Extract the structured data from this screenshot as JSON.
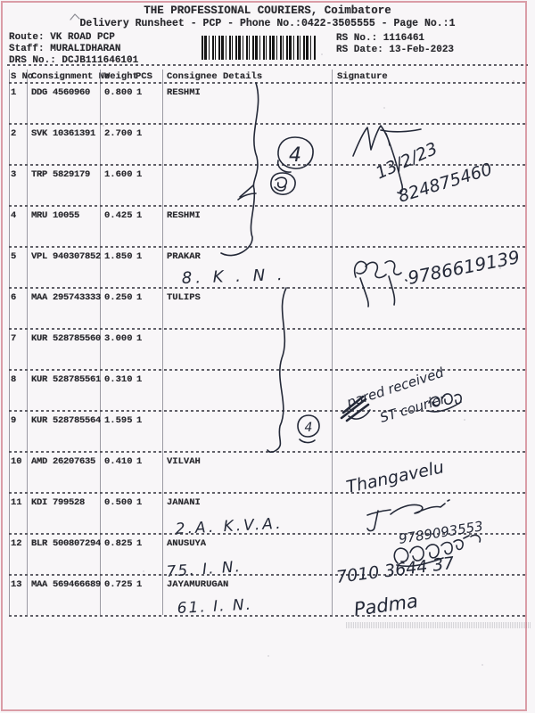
{
  "header": {
    "title": "THE PROFESSIONAL COURIERS, Coimbatore",
    "subtitle": "Delivery Runsheet - PCP - Phone No.:0422-3505555 - Page No.:1",
    "route_label": "Route: VK ROAD PCP",
    "staff_label": "Staff: MURALIDHARAN",
    "drs_label": "DRS No.: DCJB111646101",
    "rs_no": "RS No.: 1116461",
    "rs_date": "RS Date: 13-Feb-2023",
    "barcode_icon": "barcode"
  },
  "table": {
    "columns": [
      "S No",
      "Consignment No",
      "Weight",
      "PCS",
      "Consignee Details",
      "Signature"
    ],
    "rows": [
      {
        "sno": "1",
        "consignment": "DDG 4560960",
        "weight": "0.800",
        "pcs": "1",
        "consignee": "RESHMI"
      },
      {
        "sno": "2",
        "consignment": "SVK 10361391",
        "weight": "2.700",
        "pcs": "1",
        "consignee": ""
      },
      {
        "sno": "3",
        "consignment": "TRP 5829179",
        "weight": "1.600",
        "pcs": "1",
        "consignee": ""
      },
      {
        "sno": "4",
        "consignment": "MRU 10055",
        "weight": "0.425",
        "pcs": "1",
        "consignee": "RESHMI"
      },
      {
        "sno": "5",
        "consignment": "VPL 940307852",
        "weight": "1.850",
        "pcs": "1",
        "consignee": "PRAKAR"
      },
      {
        "sno": "6",
        "consignment": "MAA 295743333",
        "weight": "0.250",
        "pcs": "1",
        "consignee": "TULIPS"
      },
      {
        "sno": "7",
        "consignment": "KUR 528785560",
        "weight": "3.000",
        "pcs": "1",
        "consignee": ""
      },
      {
        "sno": "8",
        "consignment": "KUR 528785561",
        "weight": "0.310",
        "pcs": "1",
        "consignee": ""
      },
      {
        "sno": "9",
        "consignment": "KUR 528785564",
        "weight": "1.595",
        "pcs": "1",
        "consignee": ""
      },
      {
        "sno": "10",
        "consignment": "AMD 26207635",
        "weight": "0.410",
        "pcs": "1",
        "consignee": "VILVAH"
      },
      {
        "sno": "11",
        "consignment": "KDI 799528",
        "weight": "0.500",
        "pcs": "1",
        "consignee": "JANANI"
      },
      {
        "sno": "12",
        "consignment": "BLR 500807294",
        "weight": "0.825",
        "pcs": "1",
        "consignee": "ANUSUYA"
      },
      {
        "sno": "13",
        "consignment": "MAA 569466689",
        "weight": "0.725",
        "pcs": "1",
        "consignee": "JAYAMURUGAN"
      }
    ]
  },
  "handwriting": {
    "ink_color": "#242938",
    "circled_number_1": "4",
    "circled_number_2": "4",
    "row2_date": "13/2/23",
    "row2_phone": "824875460",
    "row5_note": "8.  K . N .",
    "row5_phone": "9786619139",
    "row8_line1": "pared received",
    "row8_line2": "ST courier",
    "row10_sign": "Thangavelu",
    "row11_note": "2.A.  K.V.A.",
    "row11_phone": "9789093553",
    "row12_note": "75. I. N.",
    "row12_phone": "7010 3644 37",
    "row13_note": "61. I. N.",
    "row13_sign": "Padma"
  }
}
